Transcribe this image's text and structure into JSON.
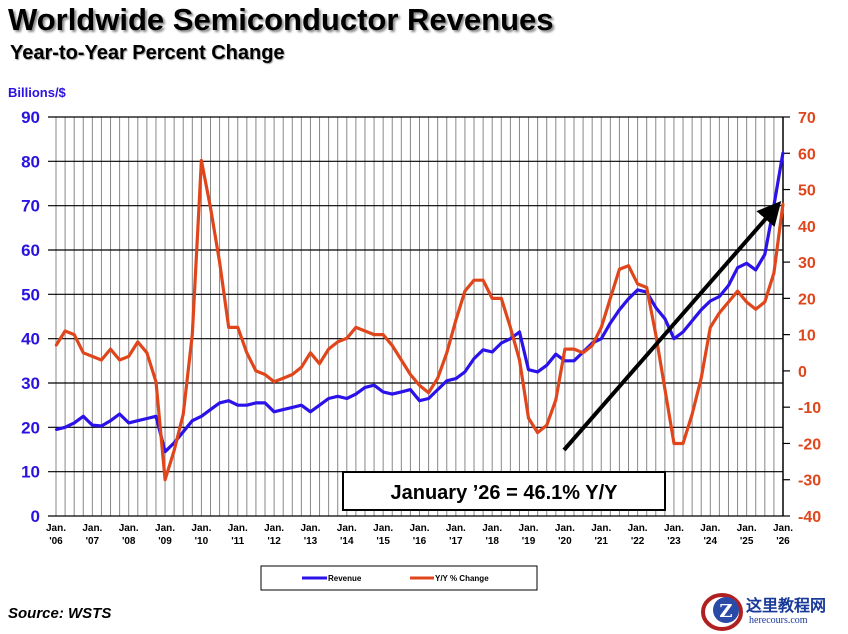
{
  "title": "Worldwide Semiconductor Revenues",
  "subtitle": "Year-to-Year Percent Change",
  "source": "Source: WSTS",
  "watermark": {
    "cn": "这里教程网",
    "url": "herecours.com"
  },
  "chart_data": {
    "type": "line",
    "title": "Worldwide Semiconductor Revenues",
    "subtitle": "Year-to-Year Percent Change",
    "ylabel_left": "Billions/$",
    "ylim_left": [
      0,
      90
    ],
    "ylim_right": [
      -40,
      70
    ],
    "yticks_left": [
      "0",
      "10",
      "20",
      "30",
      "40",
      "50",
      "60",
      "70",
      "80",
      "90"
    ],
    "yticks_right": [
      "-40",
      "-30",
      "-20",
      "-10",
      "0",
      "10",
      "20",
      "30",
      "40",
      "50",
      "60",
      "70"
    ],
    "xtick_labels": [
      [
        "Jan.",
        "'06"
      ],
      [
        "Jan.",
        "'07"
      ],
      [
        "Jan.",
        "'08"
      ],
      [
        "Jan.",
        "'09"
      ],
      [
        "Jan.",
        "'10"
      ],
      [
        "Jan.",
        "'11"
      ],
      [
        "Jan.",
        "'12"
      ],
      [
        "Jan.",
        "'13"
      ],
      [
        "Jan.",
        "'14"
      ],
      [
        "Jan.",
        "'15"
      ],
      [
        "Jan.",
        "'16"
      ],
      [
        "Jan.",
        "'17"
      ],
      [
        "Jan.",
        "'18"
      ],
      [
        "Jan.",
        "'19"
      ],
      [
        "Jan.",
        "'20"
      ],
      [
        "Jan.",
        "'21"
      ],
      [
        "Jan.",
        "'22"
      ],
      [
        "Jan.",
        "'23"
      ],
      [
        "Jan.",
        "'24"
      ],
      [
        "Jan.",
        "'25"
      ],
      [
        "Jan.",
        "'26"
      ]
    ],
    "x_start": "2006-01",
    "x_end": "2026-01",
    "x_step": "quarter",
    "grid": true,
    "legend_position": "bottom",
    "annotation": "January ’26 = 46.1% Y/Y",
    "series": [
      {
        "name": "Revenue",
        "axis": "left",
        "color": "#2a12e8",
        "values": [
          19.5,
          20,
          21,
          22.5,
          20.5,
          20.3,
          21.5,
          23,
          21,
          21.5,
          22,
          22.5,
          14.5,
          16.5,
          19,
          21.5,
          22.5,
          24,
          25.5,
          26,
          25,
          25,
          25.5,
          25.5,
          23.5,
          24,
          24.5,
          25,
          23.5,
          25,
          26.5,
          27,
          26.5,
          27.5,
          29,
          29.5,
          28,
          27.5,
          28,
          28.5,
          26,
          26.5,
          28.5,
          30.5,
          31,
          32.5,
          35.5,
          37.5,
          37,
          39,
          40,
          41.5,
          33,
          32.5,
          34,
          36.5,
          35,
          35,
          37,
          39,
          40,
          43.5,
          46.5,
          49,
          51,
          50.5,
          47,
          44.5,
          40,
          41.5,
          44,
          46.5,
          48.5,
          49.5,
          52,
          56,
          57,
          55.5,
          59,
          70,
          82
        ]
      },
      {
        "name": "Y/Y % Change",
        "axis": "right",
        "color": "#e0461c",
        "values": [
          7,
          11,
          10,
          5,
          4,
          3,
          6,
          3,
          4,
          8,
          5,
          -3,
          -30,
          -22,
          -12,
          10,
          58,
          45,
          30,
          12,
          12,
          5,
          0,
          -1,
          -3,
          -2,
          -1,
          1,
          5,
          2,
          6,
          8,
          9,
          12,
          11,
          10,
          10,
          7,
          3,
          -1,
          -4,
          -6,
          -2,
          5,
          14,
          22,
          25,
          25,
          20,
          20,
          12,
          3,
          -13,
          -17,
          -15,
          -8,
          6,
          6,
          5,
          7,
          12,
          20,
          28,
          29,
          24,
          23,
          10,
          -5,
          -20,
          -20,
          -12,
          -2,
          12,
          16,
          19,
          22,
          19,
          17,
          19,
          27,
          46.1
        ]
      }
    ]
  }
}
